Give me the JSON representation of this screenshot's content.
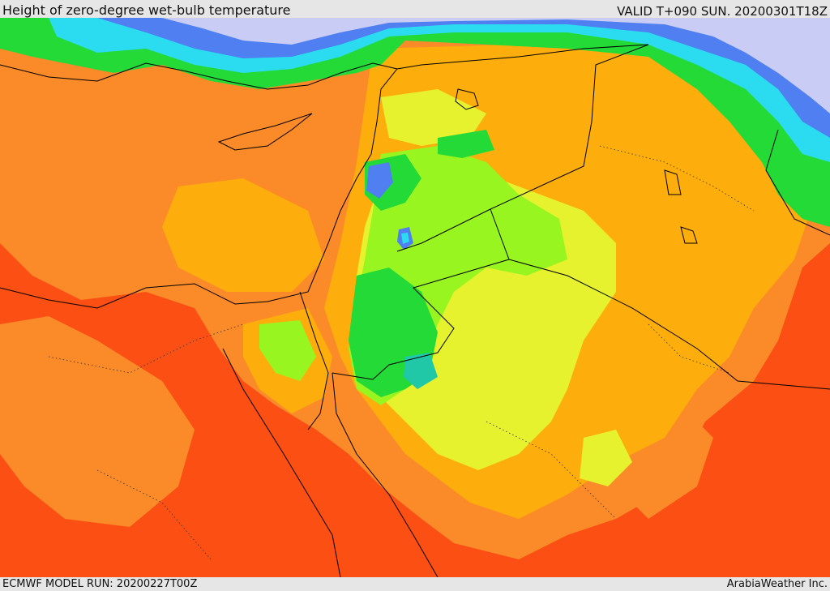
{
  "header": {
    "title": "Height of zero-degree wet-bulb temperature",
    "valid_time": "VALID T+090 SUN. 20200301T18Z"
  },
  "footer": {
    "model_run": "ECMWF MODEL RUN: 20200227T00Z",
    "credit": "ArabiaWeather Inc."
  },
  "palette": {
    "red_orange": "#fb4f14",
    "orange": "#fb8a28",
    "amber": "#fdae0c",
    "yellow": "#e7f22f",
    "lime": "#99f520",
    "green": "#23da37",
    "teal": "#20c8a8",
    "cyan": "#2bdcf0",
    "blue": "#4f7ff0",
    "lavender": "#c9cdf5",
    "border": "#000000"
  }
}
